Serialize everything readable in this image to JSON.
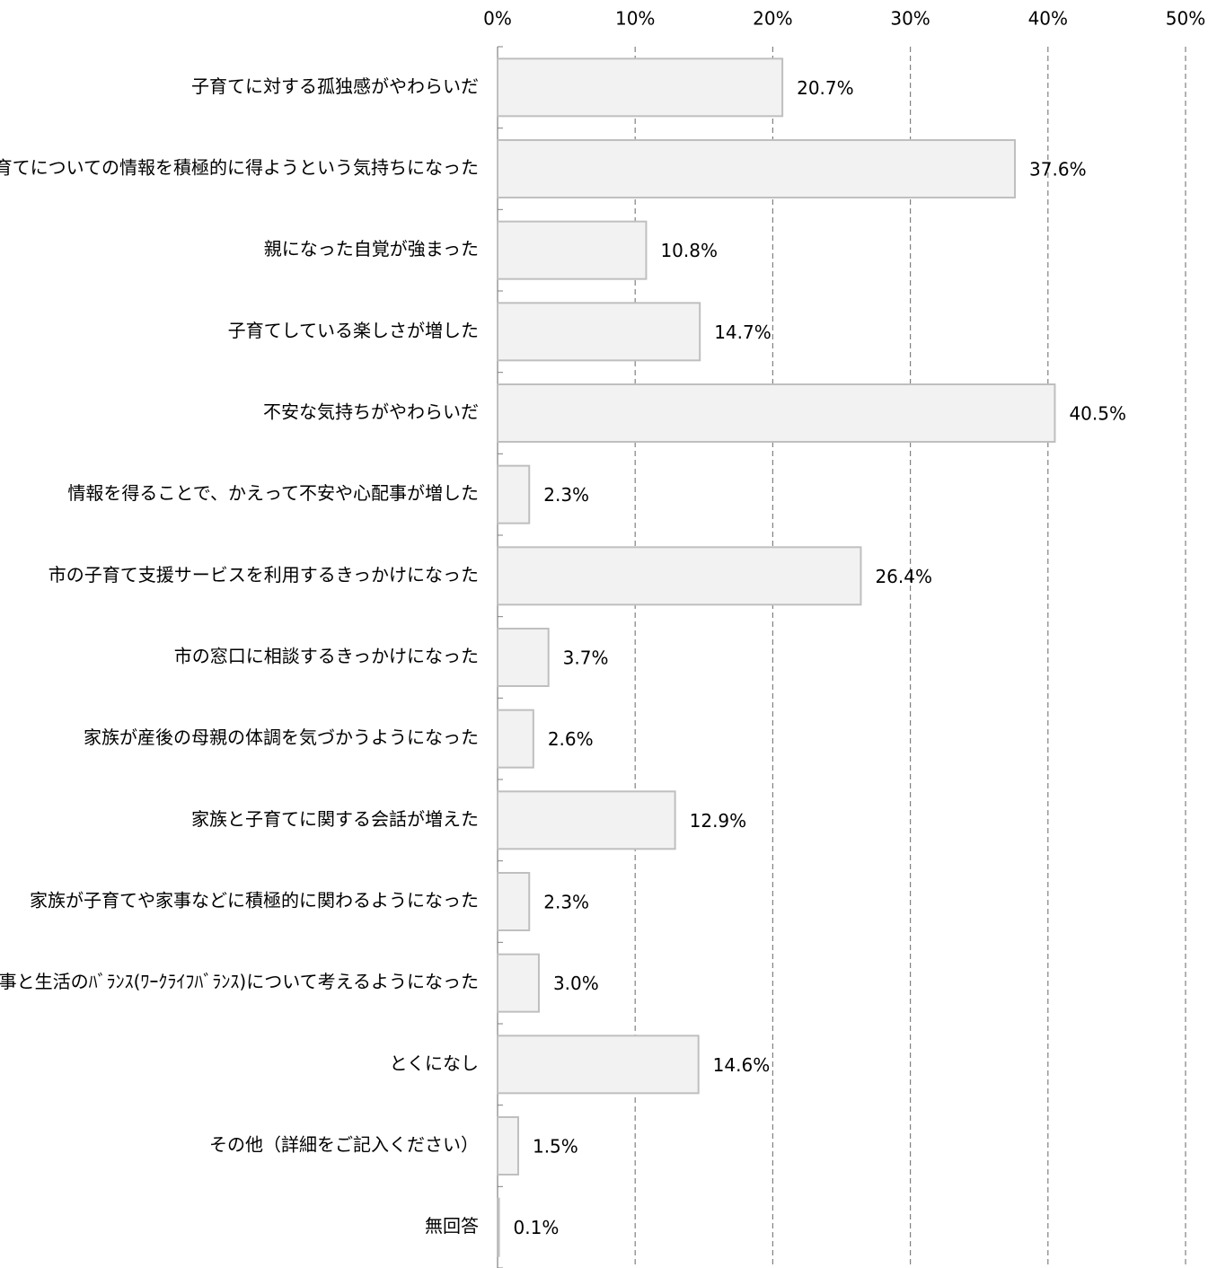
{
  "chart_data": {
    "type": "bar",
    "orientation": "horizontal",
    "categories": [
      "子育てに対する孤独感がやわらいだ",
      "子育てについての情報を積極的に得ようという気持ちになった",
      "親になった自覚が強まった",
      "子育てしている楽しさが増した",
      "不安な気持ちがやわらいだ",
      "情報を得ることで、かえって不安や心配事が増した",
      "市の子育て支援サービスを利用するきっかけになった",
      "市の窓口に相談するきっかけになった",
      "家族が産後の母親の体調を気づかうようになった",
      "家族と子育てに関する会話が増えた",
      "家族が子育てや家事などに積極的に関わるようになった",
      "仕事と生活のﾊﾞﾗﾝｽ(ﾜｰｸﾗｲﾌﾊﾞﾗﾝｽ)について考えるようになった",
      "とくになし",
      "その他（詳細をご記入ください）",
      "無回答"
    ],
    "values": [
      20.7,
      37.6,
      10.8,
      14.7,
      40.5,
      2.3,
      26.4,
      3.7,
      2.6,
      12.9,
      2.3,
      3.0,
      14.6,
      1.5,
      0.1
    ],
    "value_labels": [
      "20.7%",
      "37.6%",
      "10.8%",
      "14.7%",
      "40.5%",
      "2.3%",
      "26.4%",
      "3.7%",
      "2.6%",
      "12.9%",
      "2.3%",
      "3.0%",
      "14.6%",
      "1.5%",
      "0.1%"
    ],
    "color": "#f2f2f2",
    "edge_color": "#bfbfbf",
    "xlim": [
      0,
      50
    ],
    "xticks": [
      {
        "value": 0,
        "label": "0%"
      },
      {
        "value": 10,
        "label": "10%"
      },
      {
        "value": 20,
        "label": "20%"
      },
      {
        "value": 30,
        "label": "30%"
      },
      {
        "value": 40,
        "label": "40%"
      },
      {
        "value": 50,
        "label": "50%"
      }
    ],
    "grid": true
  }
}
